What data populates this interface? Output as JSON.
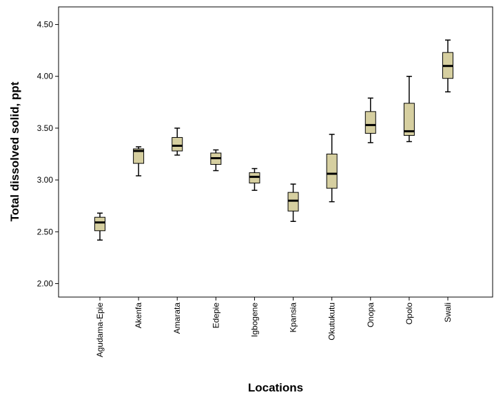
{
  "chart_data": {
    "type": "boxplot",
    "title": "",
    "xlabel": "Locations",
    "ylabel": "Total dissolved solid, ppt",
    "ylim": [
      1.87,
      4.67
    ],
    "yticks": [
      2.0,
      2.5,
      3.0,
      3.5,
      4.0,
      4.5
    ],
    "ytick_labels": [
      "2.00",
      "2.50",
      "3.00",
      "3.50",
      "4.00",
      "4.50"
    ],
    "grid": false,
    "legend": "none",
    "box_color": "#d6cfa0",
    "categories": [
      "Agudama-Epie",
      "Akenfa",
      "Amarata",
      "Edepie",
      "Igbogene",
      "Kpansia",
      "Okutukutu",
      "Onopa",
      "Opolo",
      "Swali"
    ],
    "boxes": [
      {
        "min": 2.42,
        "q1": 2.51,
        "median": 2.59,
        "q3": 2.64,
        "max": 2.68
      },
      {
        "min": 3.04,
        "q1": 3.16,
        "median": 3.28,
        "q3": 3.3,
        "max": 3.32
      },
      {
        "min": 3.24,
        "q1": 3.28,
        "median": 3.33,
        "q3": 3.41,
        "max": 3.5
      },
      {
        "min": 3.09,
        "q1": 3.15,
        "median": 3.21,
        "q3": 3.26,
        "max": 3.29
      },
      {
        "min": 2.9,
        "q1": 2.97,
        "median": 3.03,
        "q3": 3.07,
        "max": 3.11
      },
      {
        "min": 2.6,
        "q1": 2.7,
        "median": 2.8,
        "q3": 2.88,
        "max": 2.96
      },
      {
        "min": 2.79,
        "q1": 2.92,
        "median": 3.06,
        "q3": 3.25,
        "max": 3.44
      },
      {
        "min": 3.36,
        "q1": 3.45,
        "median": 3.53,
        "q3": 3.66,
        "max": 3.79
      },
      {
        "min": 3.37,
        "q1": 3.43,
        "median": 3.47,
        "q3": 3.74,
        "max": 4.0
      },
      {
        "min": 3.85,
        "q1": 3.98,
        "median": 4.1,
        "q3": 4.23,
        "max": 4.35
      }
    ]
  }
}
